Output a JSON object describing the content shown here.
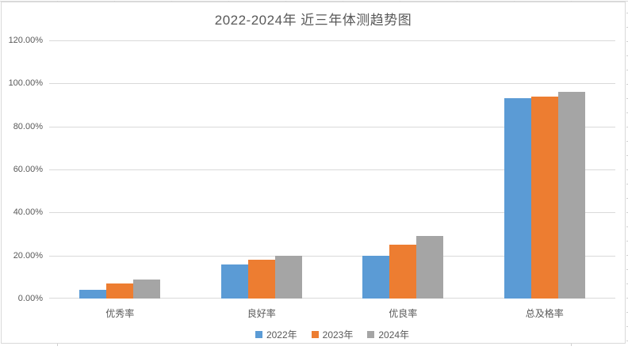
{
  "chart_data": {
    "type": "bar",
    "title": "2022-2024年 近三年体测趋势图",
    "categories": [
      "优秀率",
      "良好率",
      "优良率",
      "总及格率"
    ],
    "series": [
      {
        "name": "2022年",
        "color": "#5B9BD5",
        "values": [
          4,
          16,
          20,
          93
        ]
      },
      {
        "name": "2023年",
        "color": "#ED7D31",
        "values": [
          7,
          18,
          25,
          94
        ]
      },
      {
        "name": "2024年",
        "color": "#A5A5A5",
        "values": [
          9,
          20,
          29,
          96
        ]
      }
    ],
    "value_unit": "%",
    "ylim": [
      0,
      120
    ],
    "ytick_labels": [
      "0.00%",
      "20.00%",
      "40.00%",
      "60.00%",
      "80.00%",
      "100.00%",
      "120.00%"
    ],
    "grid": "horizontal",
    "legend_position": "bottom-center"
  },
  "colors": {
    "background": "#FFFFFF",
    "frame_border": "#D9D9D9",
    "gridline": "#D9D9D9",
    "axis_text": "#595959",
    "title_text": "#595959"
  }
}
